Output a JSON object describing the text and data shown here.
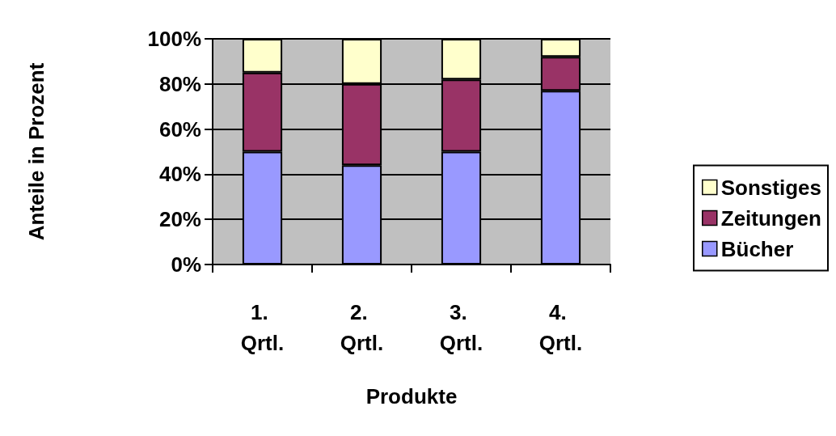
{
  "chart_data": {
    "type": "bar",
    "stacked": true,
    "xlabel": "Produkte",
    "ylabel": "Anteile in Prozent",
    "categories": [
      "1. Qrtl.",
      "2. Qrtl.",
      "3. Qrtl.",
      "4. Qrtl."
    ],
    "series": [
      {
        "name": "Bücher",
        "color": "#9999ff",
        "values": [
          50,
          44,
          50,
          77
        ]
      },
      {
        "name": "Zeitungen",
        "color": "#993366",
        "values": [
          35,
          36,
          32,
          15
        ]
      },
      {
        "name": "Sonstiges",
        "color": "#ffffcc",
        "values": [
          15,
          20,
          18,
          8
        ]
      }
    ],
    "ylim": [
      0,
      100
    ],
    "yticks": [
      {
        "value": 0,
        "label": "0%"
      },
      {
        "value": 20,
        "label": "20%"
      },
      {
        "value": 40,
        "label": "40%"
      },
      {
        "value": 60,
        "label": "60%"
      },
      {
        "value": 80,
        "label": "80%"
      },
      {
        "value": 100,
        "label": "100%"
      }
    ],
    "grid": "y",
    "legend": "right"
  }
}
